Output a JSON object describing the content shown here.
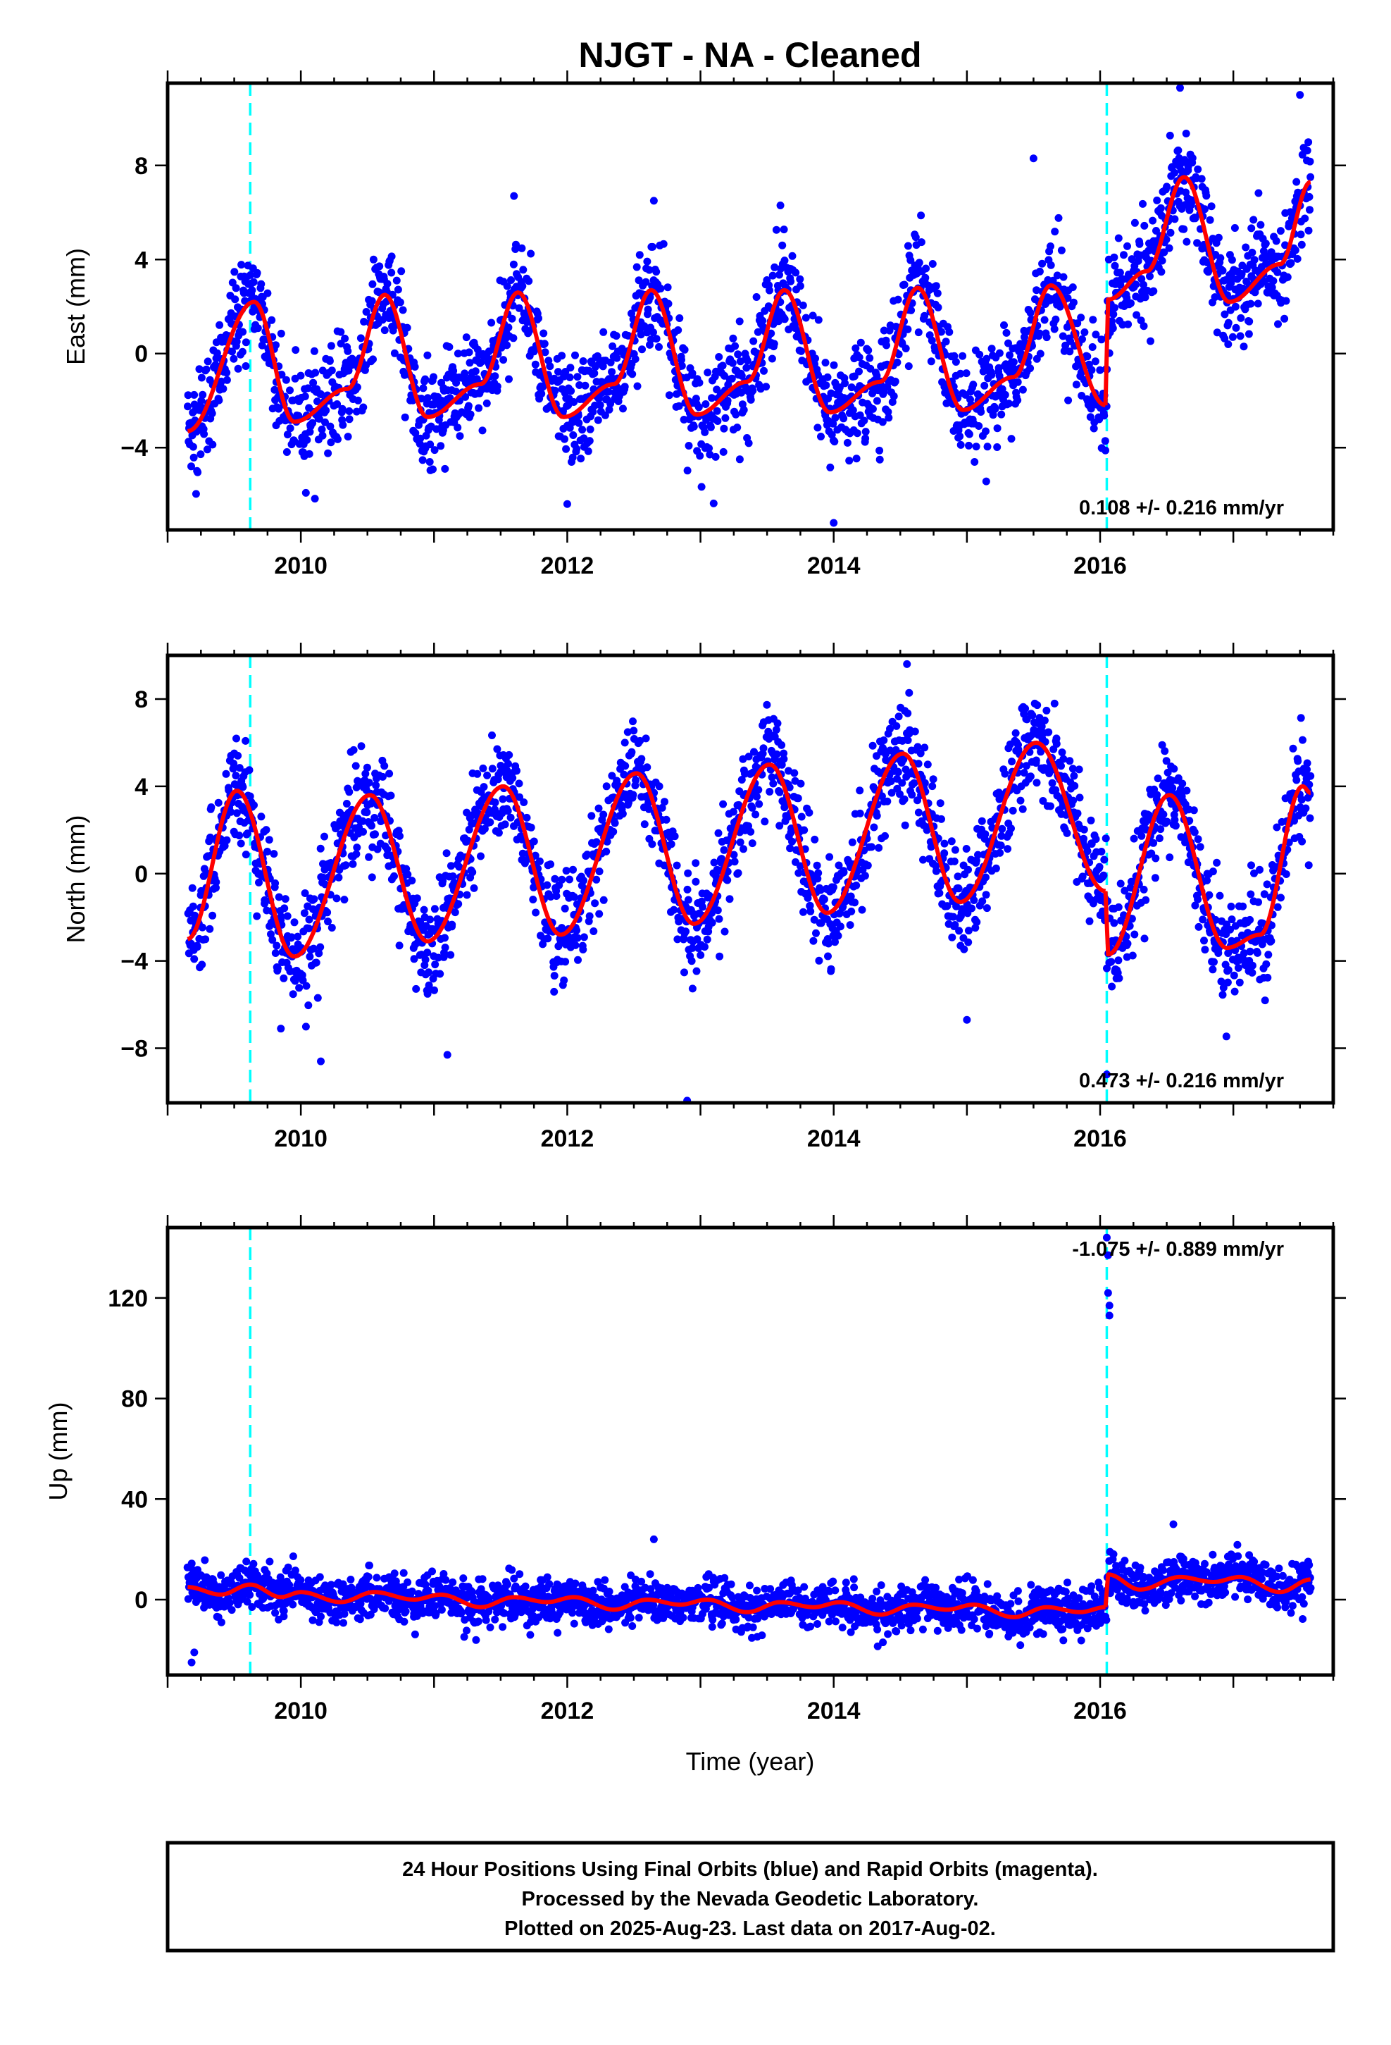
{
  "title": "NJGT  - NA - Cleaned",
  "colors": {
    "points": "#0000ff",
    "fit": "#ff0000",
    "offset_line": "#00ffff",
    "frame": "#000000"
  },
  "xlabel": "Time (year)",
  "x_ticks": [
    "2010",
    "2012",
    "2014",
    "2016"
  ],
  "footer": {
    "line1": "24 Hour Positions Using Final Orbits (blue) and Rapid Orbits (magenta).",
    "line2": "Processed by the Nevada Geodetic Laboratory.",
    "line3": "Plotted on 2025-Aug-23. Last data on 2017-Aug-02."
  },
  "chart_data": [
    {
      "type": "scatter",
      "component": "east",
      "ylabel": "East (mm)",
      "rate_text": "0.108 +/- 0.216 mm/yr",
      "xlim": [
        2009.0,
        2017.75
      ],
      "ylim": [
        -7.5,
        11.5
      ],
      "y_ticks": [
        -4,
        0,
        4,
        8
      ],
      "y_tick_labels": [
        "−4",
        "0",
        "4",
        "8"
      ],
      "offset_epochs": [
        2009.62,
        2016.05
      ],
      "data_range": [
        2009.15,
        2017.58
      ],
      "model": {
        "trend_mm_per_yr": 0.108,
        "seasonal": [
          {
            "at": 2009.15,
            "v": -3.3
          },
          {
            "at": 2009.65,
            "v": 2.2
          },
          {
            "at": 2009.95,
            "v": -2.9
          },
          {
            "at": 2010.35,
            "v": -1.5
          },
          {
            "at": 2010.63,
            "v": 2.5
          },
          {
            "at": 2010.95,
            "v": -2.7
          },
          {
            "at": 2011.35,
            "v": -1.3
          },
          {
            "at": 2011.63,
            "v": 2.6
          },
          {
            "at": 2011.97,
            "v": -2.7
          },
          {
            "at": 2012.35,
            "v": -1.3
          },
          {
            "at": 2012.63,
            "v": 2.7
          },
          {
            "at": 2012.97,
            "v": -2.6
          },
          {
            "at": 2013.35,
            "v": -1.2
          },
          {
            "at": 2013.63,
            "v": 2.7
          },
          {
            "at": 2013.97,
            "v": -2.5
          },
          {
            "at": 2014.35,
            "v": -1.2
          },
          {
            "at": 2014.63,
            "v": 2.8
          },
          {
            "at": 2014.97,
            "v": -2.4
          },
          {
            "at": 2015.35,
            "v": -1.0
          },
          {
            "at": 2015.63,
            "v": 2.9
          },
          {
            "at": 2016.04,
            "v": -2.2
          }
        ],
        "after_offset": [
          {
            "at": 2016.06,
            "v": 2.3
          },
          {
            "at": 2016.35,
            "v": 3.5
          },
          {
            "at": 2016.63,
            "v": 7.5
          },
          {
            "at": 2016.97,
            "v": 2.2
          },
          {
            "at": 2017.35,
            "v": 3.8
          },
          {
            "at": 2017.58,
            "v": 7.3
          }
        ],
        "scatter_sd": 1.1
      },
      "outliers": [
        {
          "x": 2016.6,
          "y": 11.3
        },
        {
          "x": 2014.0,
          "y": -7.2
        },
        {
          "x": 2012.0,
          "y": -6.4
        },
        {
          "x": 2011.6,
          "y": 6.7
        },
        {
          "x": 2012.65,
          "y": 6.5
        },
        {
          "x": 2015.5,
          "y": 8.3
        },
        {
          "x": 2017.5,
          "y": 11.0
        },
        {
          "x": 2013.6,
          "y": 6.3
        }
      ]
    },
    {
      "type": "scatter",
      "component": "north",
      "ylabel": "North (mm)",
      "rate_text": "0.473 +/- 0.216 mm/yr",
      "xlim": [
        2009.0,
        2017.75
      ],
      "ylim": [
        -10.5,
        10.0
      ],
      "y_ticks": [
        -8,
        -4,
        0,
        4,
        8
      ],
      "y_tick_labels": [
        "−8",
        "−4",
        "0",
        "4",
        "8"
      ],
      "offset_epochs": [
        2009.62,
        2016.05
      ],
      "data_range": [
        2009.15,
        2017.58
      ],
      "model": {
        "trend_mm_per_yr": 0.473,
        "seasonal": [
          {
            "at": 2009.15,
            "v": -3.0
          },
          {
            "at": 2009.52,
            "v": 3.8
          },
          {
            "at": 2009.95,
            "v": -3.8
          },
          {
            "at": 2010.52,
            "v": 3.6
          },
          {
            "at": 2010.95,
            "v": -3.1
          },
          {
            "at": 2011.52,
            "v": 4.0
          },
          {
            "at": 2011.95,
            "v": -2.8
          },
          {
            "at": 2012.52,
            "v": 4.6
          },
          {
            "at": 2012.95,
            "v": -2.3
          },
          {
            "at": 2013.52,
            "v": 5.0
          },
          {
            "at": 2013.95,
            "v": -1.8
          },
          {
            "at": 2014.52,
            "v": 5.5
          },
          {
            "at": 2014.95,
            "v": -1.3
          },
          {
            "at": 2015.52,
            "v": 6.0
          },
          {
            "at": 2016.04,
            "v": -0.8
          }
        ],
        "after_offset": [
          {
            "at": 2016.06,
            "v": -3.7
          },
          {
            "at": 2016.52,
            "v": 3.6
          },
          {
            "at": 2016.95,
            "v": -3.4
          },
          {
            "at": 2017.2,
            "v": -2.8
          },
          {
            "at": 2017.52,
            "v": 4.0
          },
          {
            "at": 2017.58,
            "v": 3.7
          }
        ],
        "scatter_sd": 1.2
      },
      "outliers": [
        {
          "x": 2014.55,
          "y": 9.6
        },
        {
          "x": 2012.9,
          "y": -10.4
        },
        {
          "x": 2016.05,
          "y": -9.2
        },
        {
          "x": 2010.15,
          "y": -8.6
        },
        {
          "x": 2011.1,
          "y": -8.3
        },
        {
          "x": 2015.0,
          "y": -6.7
        },
        {
          "x": 2009.85,
          "y": -7.1
        }
      ]
    },
    {
      "type": "scatter",
      "component": "up",
      "ylabel": "Up (mm)",
      "rate_text": "-1.075 +/- 0.889 mm/yr",
      "xlim": [
        2009.0,
        2017.75
      ],
      "ylim": [
        -30,
        148
      ],
      "y_ticks": [
        0,
        40,
        80,
        120
      ],
      "y_tick_labels": [
        "0",
        "40",
        "80",
        "120"
      ],
      "offset_epochs": [
        2009.62,
        2016.05
      ],
      "data_range": [
        2009.15,
        2017.58
      ],
      "model": {
        "trend_mm_per_yr": -1.075,
        "seasonal": [
          {
            "at": 2009.15,
            "v": 5
          },
          {
            "at": 2009.4,
            "v": 2
          },
          {
            "at": 2009.62,
            "v": 6
          },
          {
            "at": 2009.85,
            "v": 1
          },
          {
            "at": 2010.0,
            "v": 3
          },
          {
            "at": 2010.3,
            "v": -1
          },
          {
            "at": 2010.55,
            "v": 3
          },
          {
            "at": 2010.85,
            "v": 0
          },
          {
            "at": 2011.05,
            "v": 2
          },
          {
            "at": 2011.35,
            "v": -3
          },
          {
            "at": 2011.6,
            "v": 1
          },
          {
            "at": 2011.85,
            "v": -1
          },
          {
            "at": 2012.05,
            "v": 1
          },
          {
            "at": 2012.35,
            "v": -4
          },
          {
            "at": 2012.6,
            "v": 0
          },
          {
            "at": 2012.85,
            "v": -2
          },
          {
            "at": 2013.05,
            "v": 0
          },
          {
            "at": 2013.35,
            "v": -5
          },
          {
            "at": 2013.6,
            "v": -1
          },
          {
            "at": 2013.85,
            "v": -3
          },
          {
            "at": 2014.05,
            "v": -1
          },
          {
            "at": 2014.35,
            "v": -6
          },
          {
            "at": 2014.6,
            "v": -2
          },
          {
            "at": 2014.85,
            "v": -4
          },
          {
            "at": 2015.05,
            "v": -2
          },
          {
            "at": 2015.35,
            "v": -7
          },
          {
            "at": 2015.6,
            "v": -3
          },
          {
            "at": 2015.85,
            "v": -5
          },
          {
            "at": 2016.04,
            "v": -3
          }
        ],
        "after_offset": [
          {
            "at": 2016.06,
            "v": 10
          },
          {
            "at": 2016.3,
            "v": 4
          },
          {
            "at": 2016.6,
            "v": 9
          },
          {
            "at": 2016.85,
            "v": 7
          },
          {
            "at": 2017.05,
            "v": 9
          },
          {
            "at": 2017.35,
            "v": 3
          },
          {
            "at": 2017.58,
            "v": 8
          }
        ],
        "scatter_sd": 4.5
      },
      "outliers": [
        {
          "x": 2016.05,
          "y": 144
        },
        {
          "x": 2016.06,
          "y": 137
        },
        {
          "x": 2016.06,
          "y": 122
        },
        {
          "x": 2016.07,
          "y": 117
        },
        {
          "x": 2016.07,
          "y": 113
        },
        {
          "x": 2009.18,
          "y": -25
        },
        {
          "x": 2009.2,
          "y": -21
        },
        {
          "x": 2016.55,
          "y": 30
        },
        {
          "x": 2012.65,
          "y": 24
        }
      ]
    }
  ]
}
